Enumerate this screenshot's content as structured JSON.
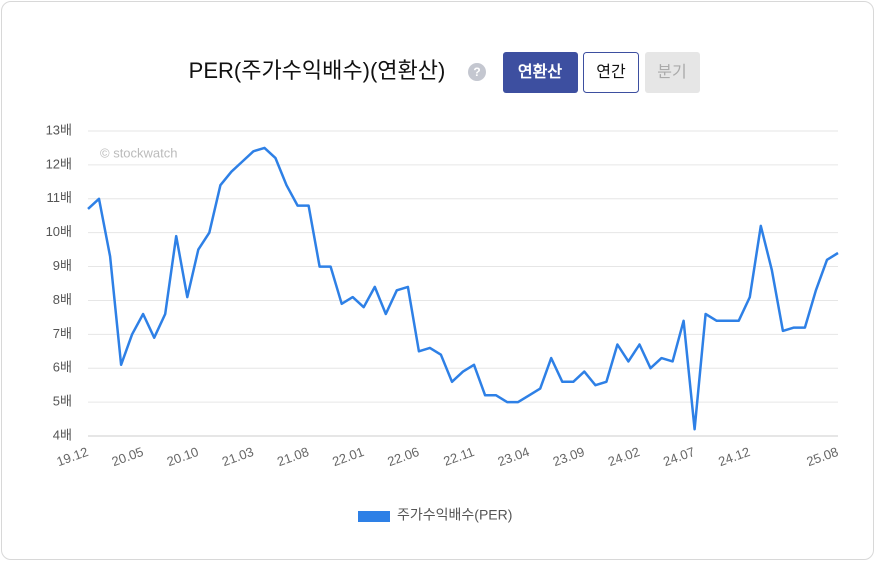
{
  "header": {
    "title": "PER(주가수익배수)(연환산)",
    "buttons": [
      "연환산",
      "연간",
      "분기"
    ]
  },
  "chart_data": {
    "type": "line",
    "watermark": "© stockwatch",
    "categories": [
      "19.12",
      null,
      null,
      null,
      null,
      "20.05",
      null,
      null,
      null,
      null,
      "20.10",
      null,
      null,
      null,
      null,
      "21.03",
      null,
      null,
      null,
      null,
      "21.08",
      null,
      null,
      null,
      null,
      "22.01",
      null,
      null,
      null,
      null,
      "22.06",
      null,
      null,
      null,
      null,
      "22.11",
      null,
      null,
      null,
      null,
      "23.04",
      null,
      null,
      null,
      null,
      "23.09",
      null,
      null,
      null,
      null,
      "24.02",
      null,
      null,
      null,
      null,
      "24.07",
      null,
      null,
      null,
      null,
      "24.12",
      null,
      null,
      null,
      null,
      null,
      null,
      null,
      "25.08"
    ],
    "series": [
      {
        "name": "주가수익배수(PER)",
        "color": "#2e80e6",
        "values": [
          10.7,
          11.0,
          9.3,
          6.1,
          7.0,
          7.6,
          6.9,
          7.6,
          9.9,
          8.1,
          9.5,
          10.0,
          11.4,
          11.8,
          12.1,
          12.4,
          12.5,
          12.2,
          11.4,
          10.8,
          10.8,
          9.0,
          9.0,
          7.9,
          8.1,
          7.8,
          8.4,
          7.6,
          8.3,
          8.4,
          6.5,
          6.6,
          6.4,
          5.6,
          5.9,
          6.1,
          5.2,
          5.2,
          5.0,
          5.0,
          5.2,
          5.4,
          6.3,
          5.6,
          5.6,
          5.9,
          5.5,
          5.6,
          6.7,
          6.2,
          6.7,
          6.0,
          6.3,
          6.2,
          7.4,
          4.2,
          7.6,
          7.4,
          7.4,
          7.4,
          8.1,
          10.2,
          8.9,
          7.1,
          7.2,
          7.2,
          8.3,
          9.2,
          9.4
        ]
      }
    ],
    "ylim": [
      4,
      13
    ],
    "yticks": [
      {
        "value": 4,
        "label": "4배"
      },
      {
        "value": 5,
        "label": "5배"
      },
      {
        "value": 6,
        "label": "6배"
      },
      {
        "value": 7,
        "label": "7배"
      },
      {
        "value": 8,
        "label": "8배"
      },
      {
        "value": 9,
        "label": "9배"
      },
      {
        "value": 10,
        "label": "10배"
      },
      {
        "value": 11,
        "label": "11배"
      },
      {
        "value": 12,
        "label": "12배"
      },
      {
        "value": 13,
        "label": "13배"
      }
    ],
    "grid": true,
    "legend": "bottom"
  }
}
